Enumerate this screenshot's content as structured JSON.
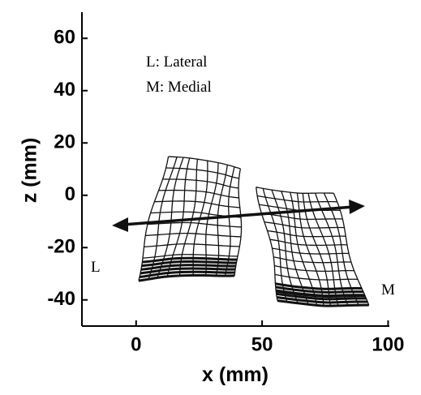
{
  "chart_data": {
    "type": "mesh-projection",
    "xlabel": "x (mm)",
    "ylabel": "z (mm)",
    "xlim": [
      -21.5,
      100.5
    ],
    "xticks": [
      0,
      50,
      100
    ],
    "ylim": [
      -50,
      70
    ],
    "yticks": [
      -40,
      -20,
      0,
      20,
      40,
      60
    ],
    "annotations": [
      "L:  Lateral",
      "M: Medial",
      "L",
      "M"
    ]
  }
}
